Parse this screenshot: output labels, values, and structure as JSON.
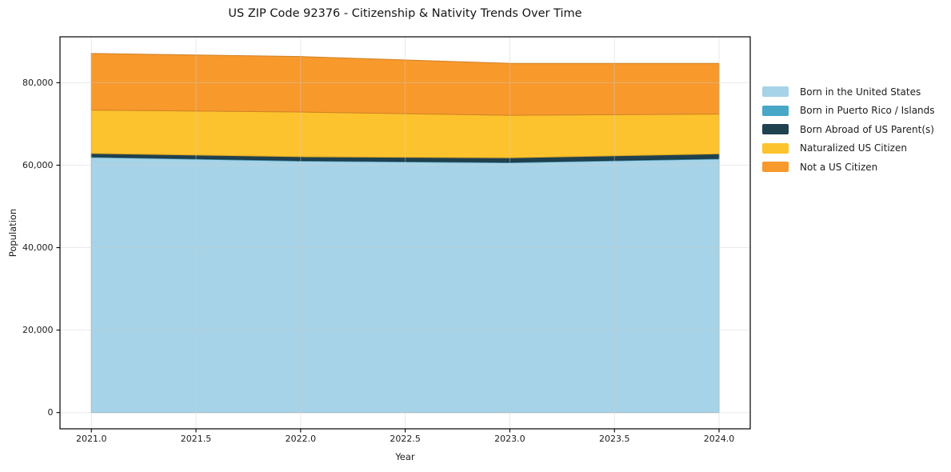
{
  "chart_data": {
    "type": "area",
    "stacked": true,
    "title": "US ZIP Code 92376 - Citizenship & Nativity Trends Over Time",
    "xlabel": "Year",
    "ylabel": "Population",
    "x": [
      2021,
      2022,
      2023,
      2024
    ],
    "series": [
      {
        "name": "Born in the United States",
        "color": "#a6d3e8",
        "values": [
          61900,
          61000,
          60600,
          61500
        ]
      },
      {
        "name": "Born in Puerto Rico / Islands",
        "color": "#48a7c6",
        "values": [
          150,
          150,
          150,
          150
        ]
      },
      {
        "name": "Born Abroad of US Parent(s)",
        "color": "#20414f",
        "values": [
          800,
          900,
          1050,
          1100
        ]
      },
      {
        "name": "Naturalized US Citizen",
        "color": "#fdc32e",
        "values": [
          10500,
          10850,
          10300,
          9650
        ]
      },
      {
        "name": "Not a US Citizen",
        "color": "#f8992c",
        "values": [
          13750,
          13450,
          12600,
          12300
        ]
      }
    ],
    "totals_by_year": [
      87100,
      86350,
      84700,
      84700
    ],
    "xlim": [
      2020.85,
      2024.149
    ],
    "ylim": [
      -3940,
      91140
    ],
    "xticks": {
      "values": [
        2021,
        2021.5,
        2022,
        2022.5,
        2023,
        2023.5,
        2024
      ],
      "labels": [
        "2021.0",
        "2021.5",
        "2022.0",
        "2022.5",
        "2023.0",
        "2023.5",
        "2024.0"
      ]
    },
    "yticks": {
      "values": [
        0,
        20000,
        40000,
        60000,
        80000
      ],
      "labels": [
        "0",
        "20,000",
        "40,000",
        "60,000",
        "80,000"
      ]
    },
    "grid": true,
    "grid_color": "#cfcfcf",
    "frame_color": "#000000",
    "text_color": "#1c1c1c",
    "background": "#ffffff",
    "legend_position": "right-outside"
  }
}
